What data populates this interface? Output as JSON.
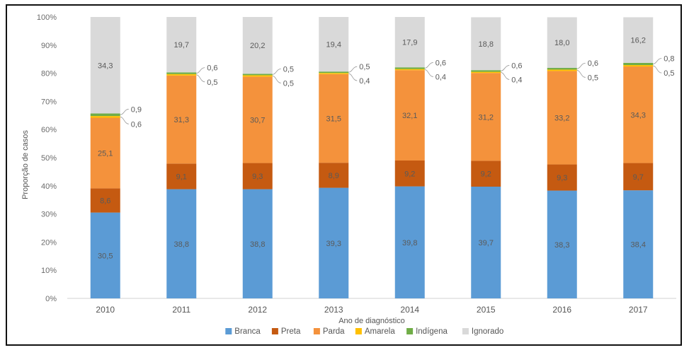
{
  "chart_data": {
    "type": "bar",
    "stacked": true,
    "categories": [
      "2010",
      "2011",
      "2012",
      "2013",
      "2014",
      "2015",
      "2016",
      "2017"
    ],
    "series": [
      {
        "name": "Branca",
        "color": "#5b9bd5",
        "values": [
          30.5,
          38.8,
          38.8,
          39.3,
          39.8,
          39.7,
          38.3,
          38.4
        ]
      },
      {
        "name": "Preta",
        "color": "#c55a11",
        "values": [
          8.6,
          9.1,
          9.3,
          8.9,
          9.2,
          9.2,
          9.3,
          9.7
        ]
      },
      {
        "name": "Parda",
        "color": "#f4923c",
        "values": [
          25.1,
          31.3,
          30.7,
          31.5,
          32.1,
          31.2,
          33.2,
          34.3
        ]
      },
      {
        "name": "Amarela",
        "color": "#ffc000",
        "values": [
          0.6,
          0.5,
          0.5,
          0.4,
          0.4,
          0.4,
          0.5,
          0.5
        ]
      },
      {
        "name": "Indígena",
        "color": "#70ad47",
        "values": [
          0.9,
          0.6,
          0.5,
          0.5,
          0.6,
          0.6,
          0.6,
          0.8
        ]
      },
      {
        "name": "Ignorado",
        "color": "#d9d9d9",
        "values": [
          34.3,
          19.7,
          20.2,
          19.4,
          17.9,
          18.8,
          18.0,
          16.2
        ]
      }
    ],
    "xlabel": "Ano de diagnóstico",
    "ylabel": "Proporção de casos",
    "ylim": [
      0,
      100
    ],
    "yticks": [
      "0%",
      "10%",
      "20%",
      "30%",
      "40%",
      "50%",
      "60%",
      "70%",
      "80%",
      "90%",
      "100%"
    ],
    "grid": false,
    "legend_position": "bottom"
  }
}
